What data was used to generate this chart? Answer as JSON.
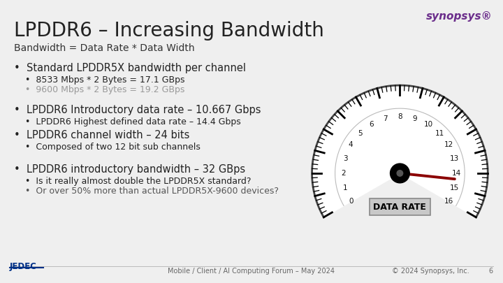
{
  "title": "LPDDR6 – Increasing Bandwidth",
  "subtitle": "Bandwidth = Data Rate * Data Width",
  "bg_color": "#efefef",
  "text_color": "#333333",
  "title_color": "#222222",
  "bullet1": "Standard LPDDR5X bandwidth per channel",
  "bullet1_sub1": "8533 Mbps * 2 Bytes = 17.1 GBps",
  "bullet1_sub2": "9600 Mbps * 2 Bytes = 19.2 GBps",
  "bullet2": "LPDDR6 Introductory data rate – 10.667 Gbps",
  "bullet2_sub1": "LPDDR6 Highest defined data rate – 14.4 Gbps",
  "bullet3": "LPDDR6 channel width – 24 bits",
  "bullet3_sub1": "Composed of two 12 bit sub channels",
  "bullet4": "LPDDR6 introductory bandwidth – 32 GBps",
  "bullet4_sub1": "Is it really almost double the LPDDR5X standard?",
  "bullet4_sub2": "Or over 50% more than actual LPDDR5X-9600 devices?",
  "synopsys_color": "#6b2d8b",
  "synopsys_text": "synopsys®",
  "jedec_color": "#003087",
  "footer_text": "Mobile / Client / AI Computing Forum – May 2024",
  "footer_right": "© 2024 Synopsys, Inc.",
  "page_num": "6",
  "gauge_labels": [
    "0",
    "1",
    "2",
    "3",
    "4",
    "5",
    "6",
    "7",
    "8",
    "9",
    "10",
    "11",
    "12",
    "13",
    "14",
    "15",
    "16"
  ],
  "gauge_label_color": "#111111",
  "gauge_data_rate_label": "DATA RATE",
  "bullet1_sub2_color": "#999999",
  "bullet4_sub2_color": "#555555",
  "needle_value": 14.4
}
